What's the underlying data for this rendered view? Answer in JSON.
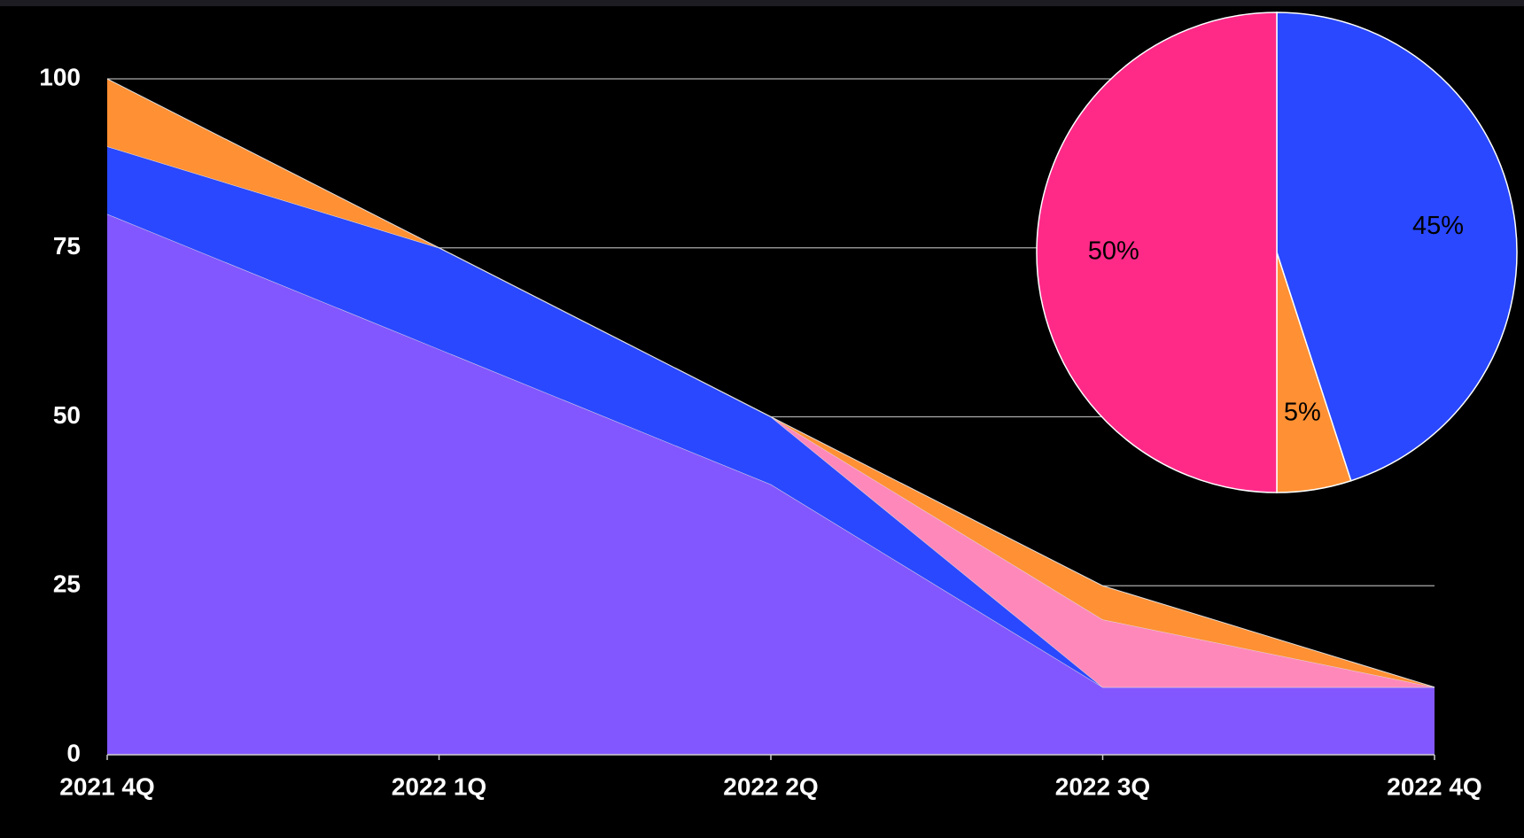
{
  "chart_data": [
    {
      "type": "stacked_area",
      "categories": [
        "2021 4Q",
        "2022 1Q",
        "2022 2Q",
        "2022 3Q",
        "2022 4Q"
      ],
      "series": [
        {
          "color": "#8357ff",
          "values": [
            80,
            60,
            40,
            10,
            10
          ]
        },
        {
          "color": "#2a48ff",
          "values": [
            10,
            15,
            10,
            0,
            0
          ]
        },
        {
          "color": "#ff88bb",
          "values": [
            0,
            0,
            0,
            10,
            0
          ]
        },
        {
          "color": "#ff9033",
          "values": [
            10,
            0,
            0,
            5,
            0
          ]
        }
      ],
      "ylim": [
        0,
        100
      ],
      "yticks": [
        0,
        25,
        50,
        75,
        100
      ],
      "grid": true
    },
    {
      "type": "pie",
      "values": [
        45,
        5,
        50
      ],
      "value_labels": [
        "45%",
        "5%",
        "50%"
      ],
      "colors": [
        "#2a48ff",
        "#ff9033",
        "#ff2a88"
      ]
    }
  ]
}
